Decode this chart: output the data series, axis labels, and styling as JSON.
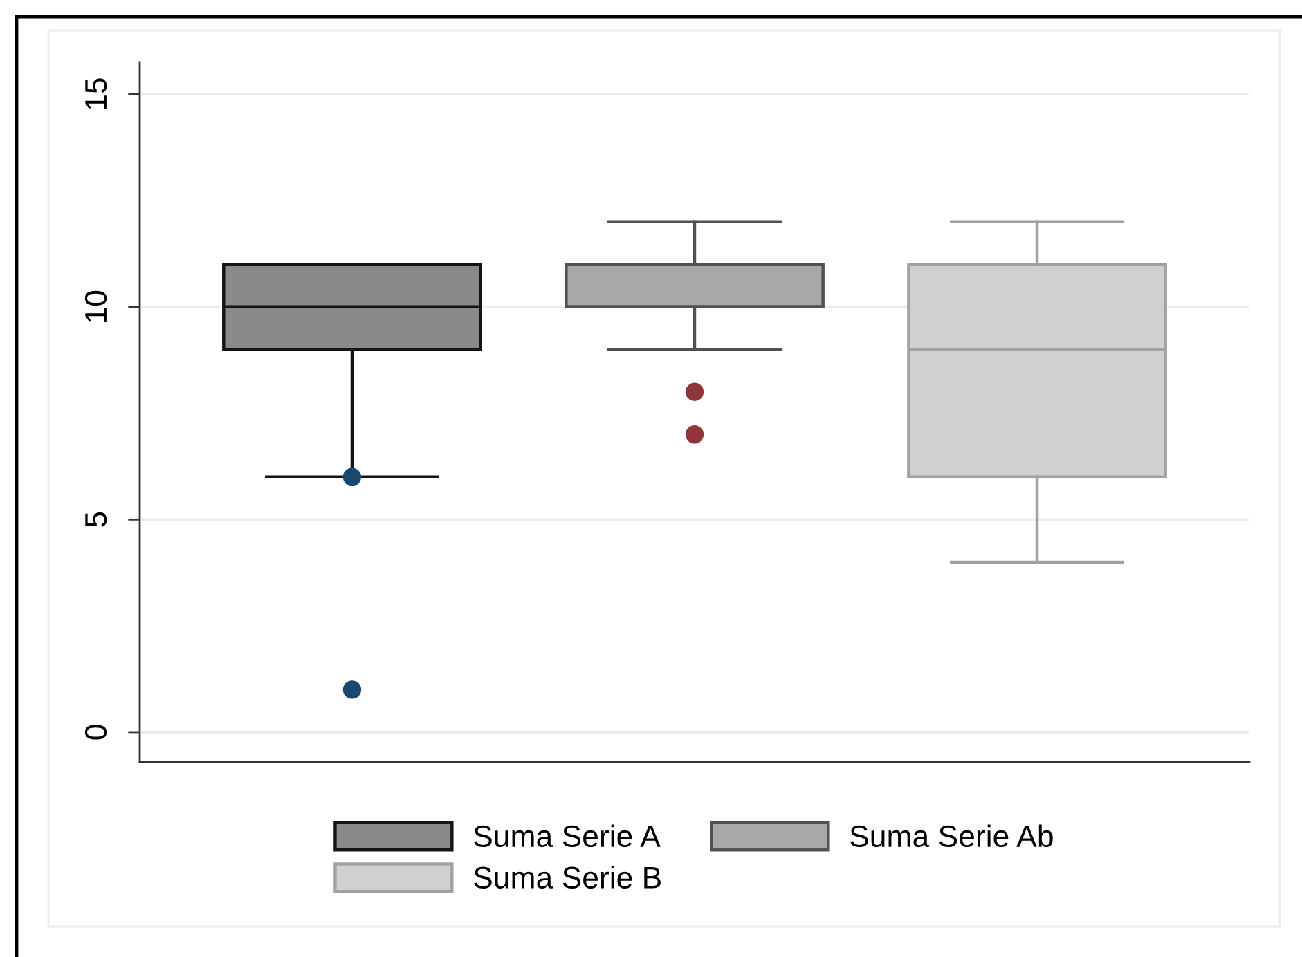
{
  "chart_data": {
    "type": "box",
    "categories": [
      null
    ],
    "series": [
      {
        "name": "Suma Serie A",
        "color": "#8a8a8a",
        "boxes": [
          {
            "low": 6,
            "q1": 9,
            "median": 10,
            "q3": 11,
            "high": 11,
            "outliers": [
              6,
              1
            ]
          }
        ]
      },
      {
        "name": "Suma Serie Ab",
        "color": "#a8a8a8",
        "boxes": [
          {
            "low": 9,
            "q1": 10,
            "median": 10,
            "q3": 11,
            "high": 12,
            "outliers": [
              8,
              7
            ]
          }
        ]
      },
      {
        "name": "Suma Serie B",
        "color": "#d0d0d0",
        "boxes": [
          {
            "low": 4,
            "q1": 6,
            "median": 9,
            "q3": 11,
            "high": 12
          }
        ]
      }
    ],
    "ylim": [
      -0.7,
      15.75
    ],
    "yticks": [
      0,
      5,
      10,
      15
    ],
    "grid": "y",
    "legend": "bottom",
    "marker": "circle",
    "tick_labels": "y"
  }
}
